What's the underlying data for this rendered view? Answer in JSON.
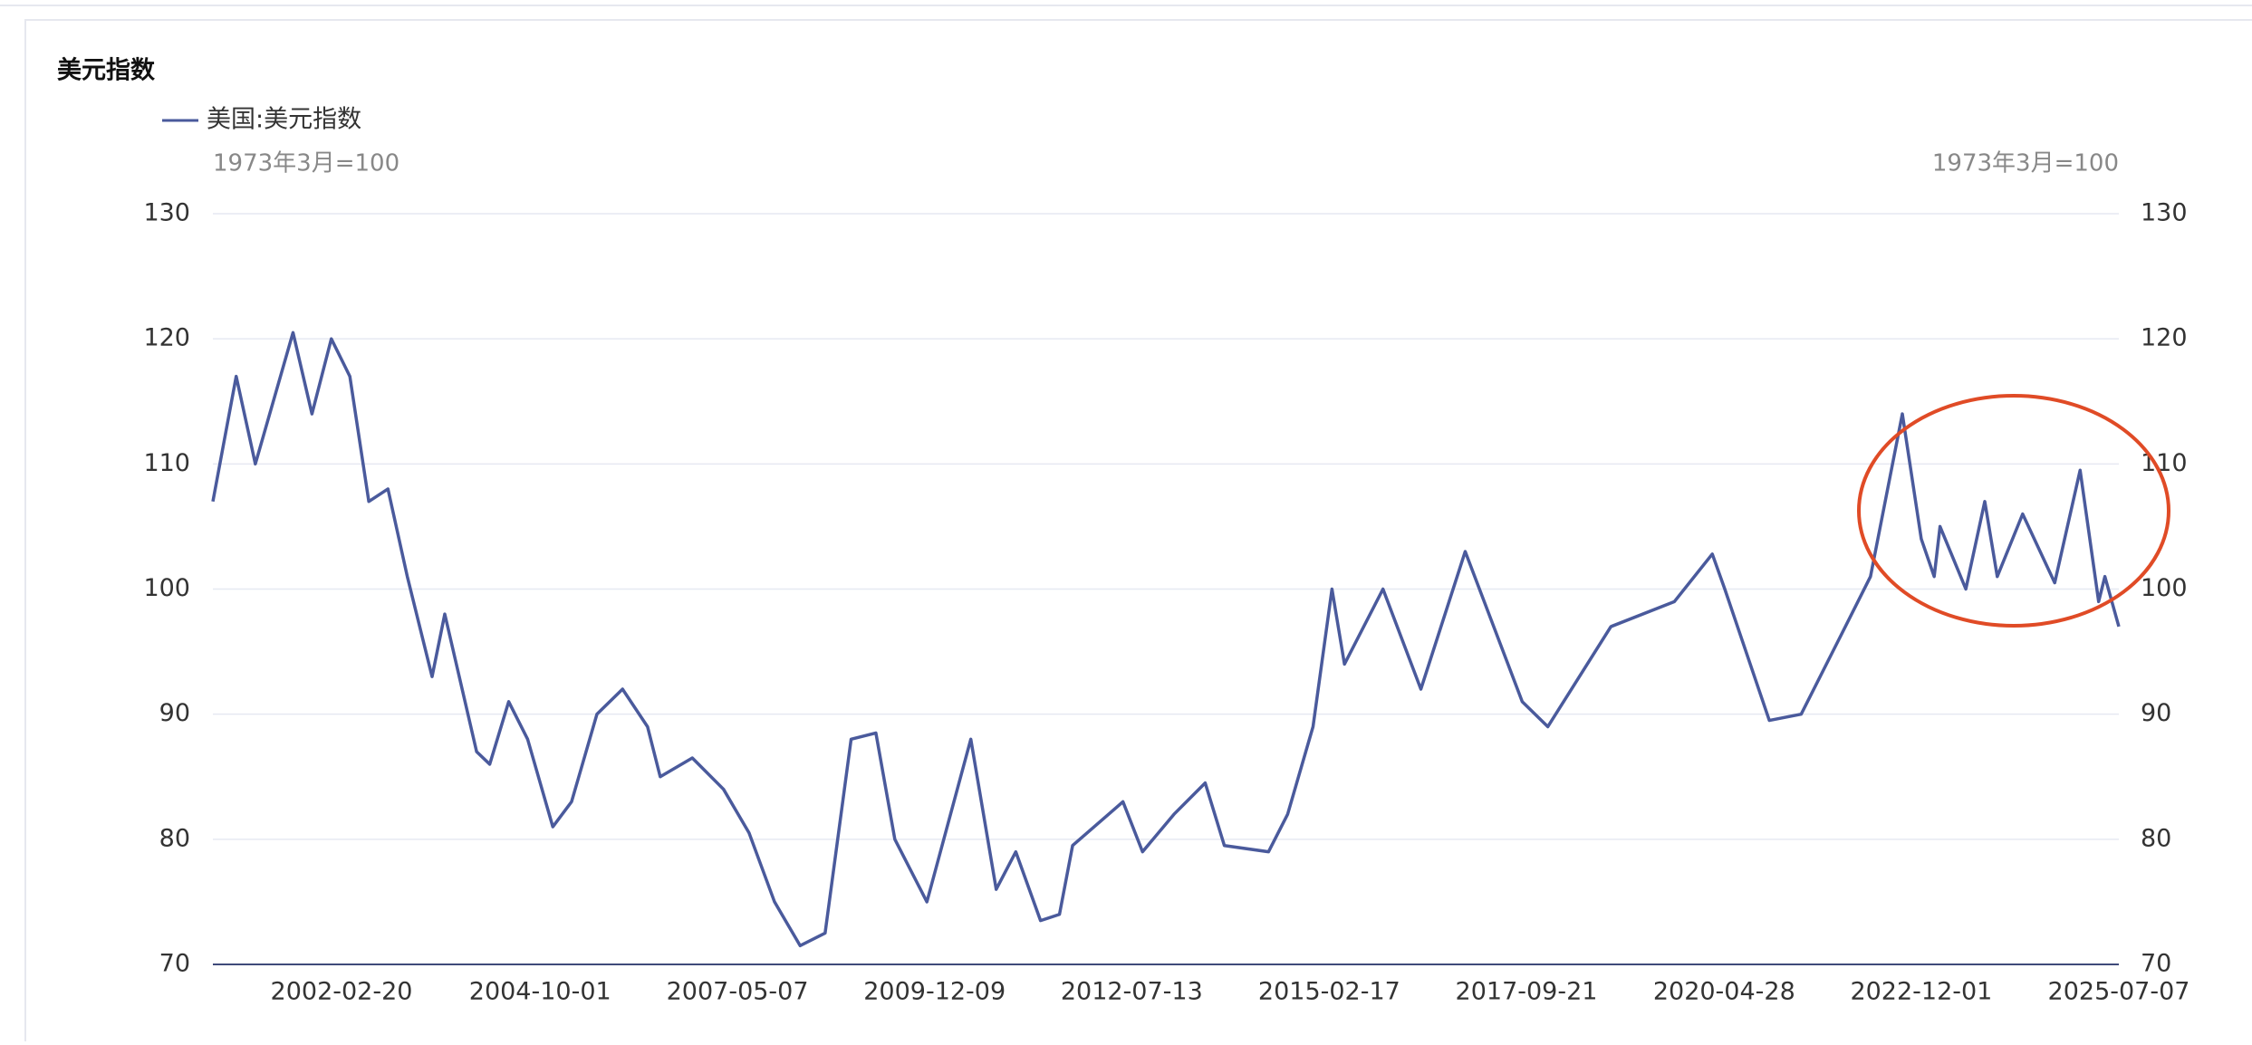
{
  "chart_data": {
    "type": "line",
    "title": "美元指数",
    "y_unit_label": "1973年3月=100",
    "y2_unit_label": "1973年3月=100",
    "x": [
      "2000-06-12",
      "2000-10-02",
      "2001-01-02",
      "2001-07-02",
      "2001-10-01",
      "2002-01-02",
      "2002-04-01",
      "2002-07-01",
      "2002-10-01",
      "2003-01-02",
      "2003-05-01",
      "2003-07-01",
      "2003-12-01",
      "2004-02-02",
      "2004-05-03",
      "2004-08-02",
      "2004-12-01",
      "2005-03-01",
      "2005-07-01",
      "2005-11-01",
      "2006-03-01",
      "2006-05-01",
      "2006-10-02",
      "2007-03-01",
      "2007-07-02",
      "2007-11-01",
      "2008-03-03",
      "2008-07-01",
      "2008-11-03",
      "2009-03-02",
      "2009-06-01",
      "2009-11-02",
      "2010-06-01",
      "2010-10-01",
      "2011-01-03",
      "2011-05-02",
      "2011-08-01",
      "2011-10-03",
      "2012-06-01",
      "2012-09-03",
      "2013-02-01",
      "2013-07-01",
      "2013-10-01",
      "2014-05-01",
      "2014-08-01",
      "2014-12-01",
      "2015-03-02",
      "2015-05-01",
      "2015-11-02",
      "2016-05-02",
      "2016-12-01",
      "2017-09-01",
      "2018-01-02",
      "2018-11-01",
      "2019-09-02",
      "2020-03-02",
      "2020-05-01",
      "2020-12-01",
      "2021-05-03",
      "2021-11-01",
      "2022-04-01",
      "2022-09-01",
      "2022-12-01",
      "2023-02-01",
      "2023-03-01",
      "2023-07-03",
      "2023-10-02",
      "2023-12-01",
      "2024-04-01",
      "2024-09-02",
      "2025-01-02",
      "2025-04-01",
      "2025-05-01",
      "2025-07-07"
    ],
    "series": [
      {
        "name": "美国:美元指数",
        "color": "#4a5a9c",
        "values": [
          107,
          117,
          110,
          120.5,
          114,
          120,
          117,
          107,
          108,
          101,
          93,
          98,
          87,
          86,
          91,
          88,
          81,
          83,
          90,
          92,
          89,
          85,
          86.5,
          84,
          80.5,
          75,
          71.5,
          72.5,
          88,
          88.5,
          80,
          75,
          88,
          76,
          79,
          73.5,
          74,
          79.5,
          83,
          79,
          82,
          84.5,
          79.5,
          79,
          82,
          89,
          100,
          94,
          100,
          92,
          103,
          91,
          89,
          97,
          99,
          102.8,
          100,
          89.5,
          90,
          96,
          101,
          114,
          104,
          101,
          105,
          100,
          107,
          101,
          106,
          100.5,
          109.5,
          99,
          101,
          97
        ]
      }
    ],
    "xlim": [
      "2000-06-12",
      "2025-07-07"
    ],
    "xticks": [
      "2002-02-20",
      "2004-10-01",
      "2007-05-07",
      "2009-12-09",
      "2012-07-13",
      "2015-02-17",
      "2017-09-21",
      "2020-04-28",
      "2022-12-01",
      "2025-07-07"
    ],
    "ylim": [
      70,
      130
    ],
    "yticks": [
      70,
      80,
      90,
      100,
      110,
      120,
      130
    ],
    "y2lim": [
      70,
      130
    ],
    "y2ticks": [
      70,
      80,
      90,
      100,
      110,
      120,
      130
    ],
    "grid": true
  }
}
